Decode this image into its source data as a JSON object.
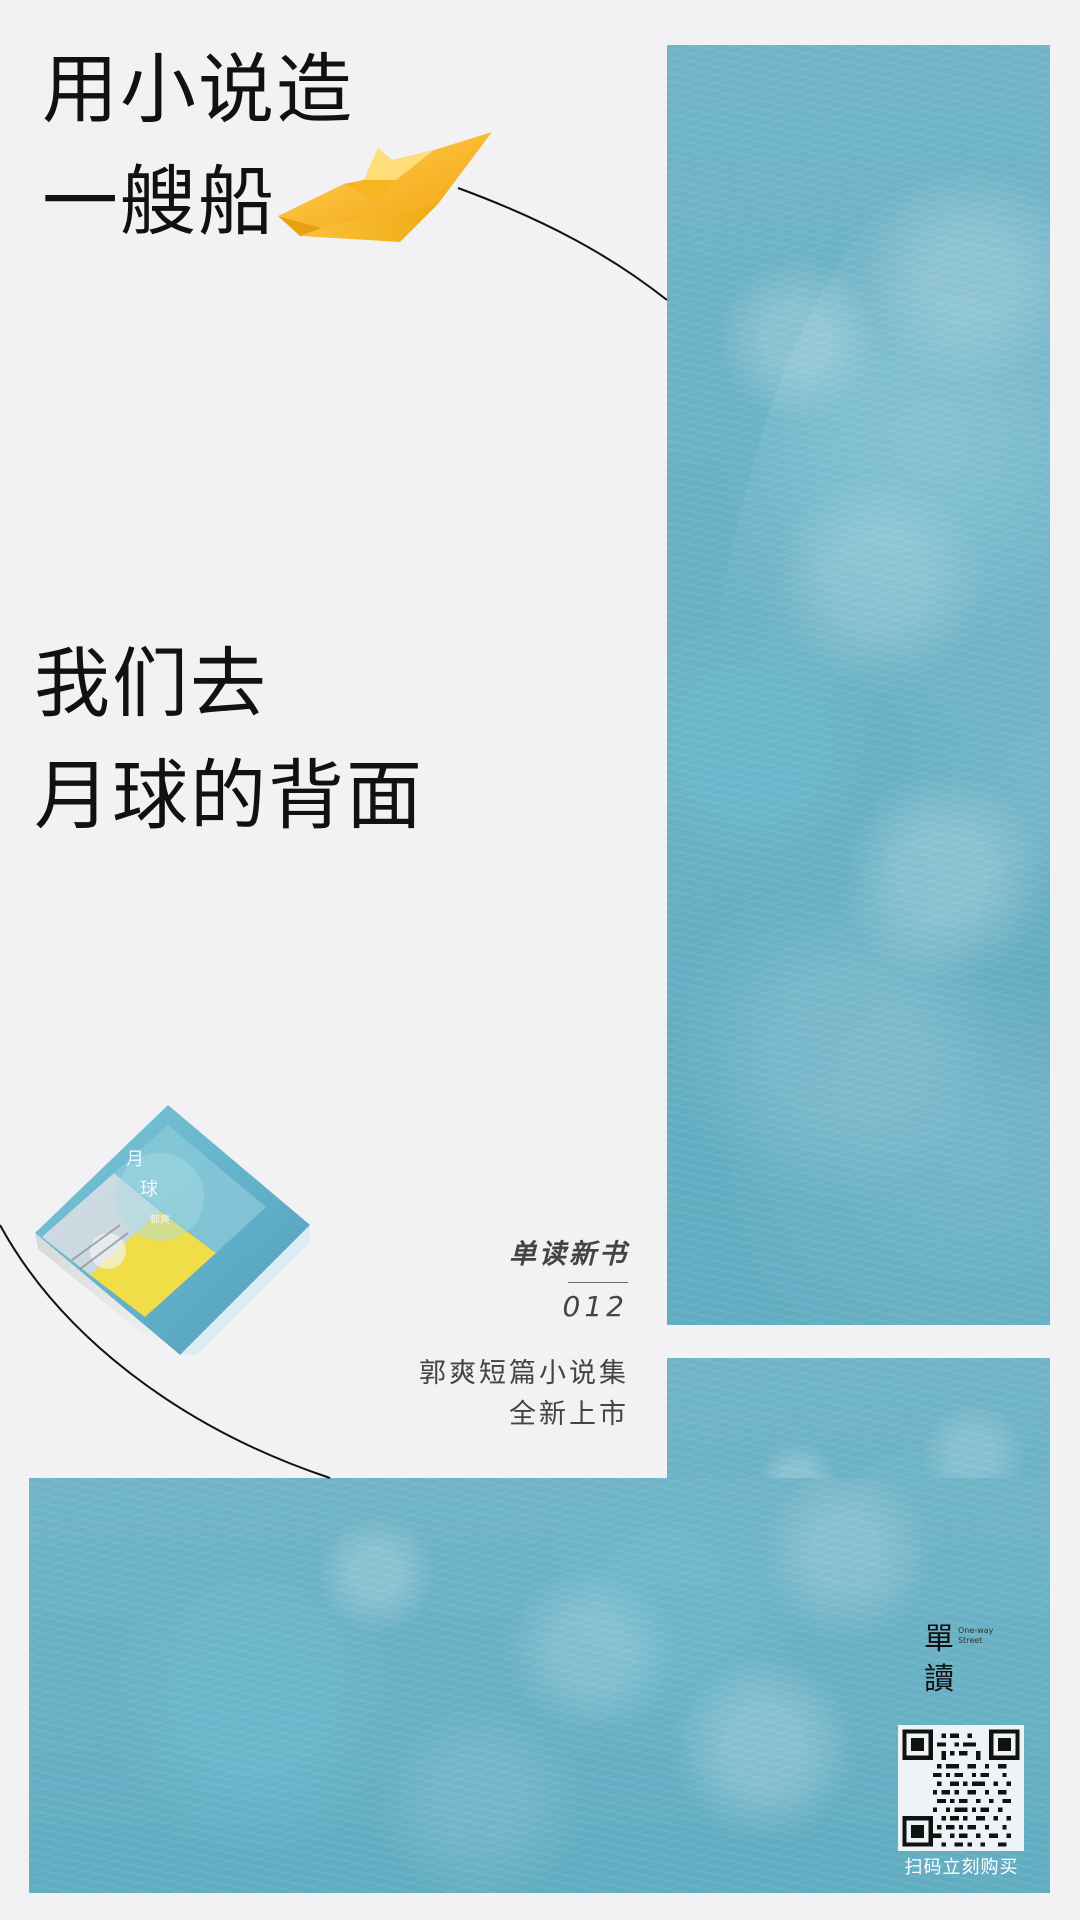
{
  "poster": {
    "headline": [
      "用小说造",
      "一艘船"
    ],
    "subheadline": [
      "我们去",
      "月球的背面"
    ],
    "series_label": "单读新书",
    "issue_number": "012",
    "promo_lines": [
      "郭爽短篇小说集",
      "全新上市"
    ],
    "qr_caption": "扫码立刻购买"
  },
  "branding": {
    "logo_cn": [
      "單",
      "讀"
    ],
    "logo_en": "One-way\nStreet"
  },
  "book": {
    "cover_title_chars": [
      "月",
      "球"
    ],
    "author": "郭爽"
  },
  "colors": {
    "background": "#f2f2f5",
    "moon_blue": "#62adc2",
    "line_dark": "#111111",
    "boat_yellow": "#f6b51c"
  },
  "icons": {
    "paper_boat": "paper-boat-icon",
    "qr_code": "qr-code-icon"
  }
}
